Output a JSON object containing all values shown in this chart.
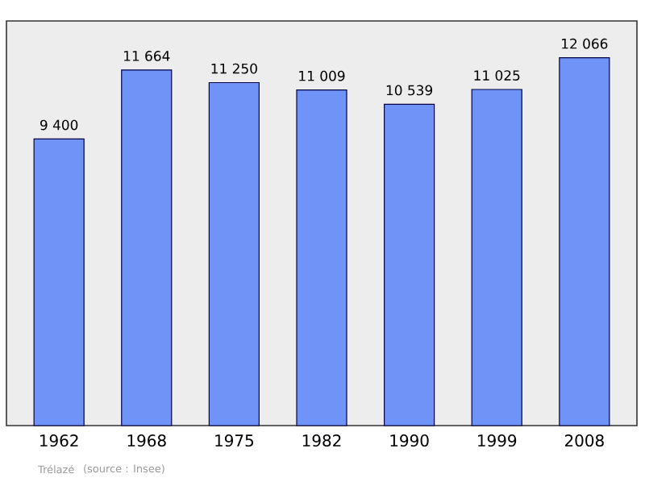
{
  "chart_data": {
    "type": "bar",
    "categories": [
      "1962",
      "1968",
      "1975",
      "1982",
      "1990",
      "1999",
      "2008"
    ],
    "values": [
      9400,
      11664,
      11250,
      11009,
      10539,
      11025,
      12066
    ],
    "value_labels": [
      "9 400",
      "11 664",
      "11 250",
      "11 009",
      "10 539",
      "11 025",
      "12 066"
    ],
    "color": "#6f93f7",
    "annotations": [
      "Trélazé",
      "(source : Insee)"
    ]
  }
}
